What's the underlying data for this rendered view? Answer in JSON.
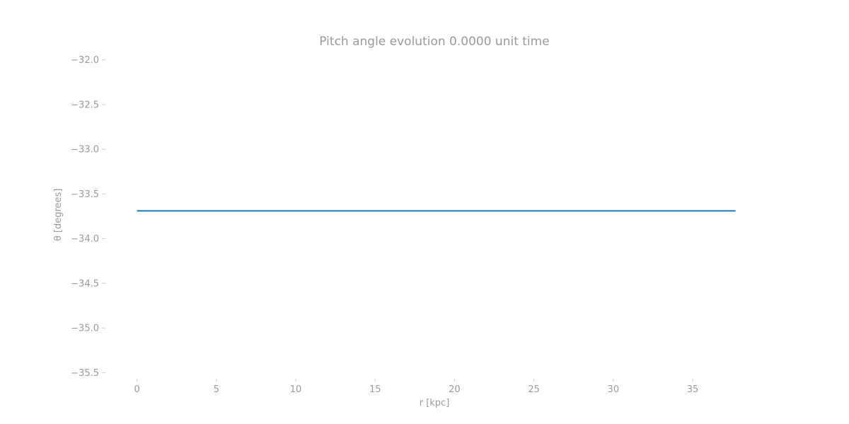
{
  "chart_data": {
    "type": "line",
    "title": "Pitch angle evolution 0.0000 unit time",
    "xlabel": "r [kpc]",
    "ylabel": "θ [degrees]",
    "xlim": [
      -1.5,
      39.5
    ],
    "ylim": [
      -35.6,
      -31.9
    ],
    "xticks": [
      0,
      5,
      10,
      15,
      20,
      25,
      30,
      35
    ],
    "xtick_labels": [
      "0",
      "5",
      "10",
      "15",
      "20",
      "25",
      "30",
      "35"
    ],
    "yticks": [
      -32.0,
      -32.5,
      -33.0,
      -33.5,
      -34.0,
      -34.5,
      -35.0,
      -35.5
    ],
    "ytick_labels": [
      "−32.0",
      "−32.5",
      "−33.0",
      "−33.5",
      "−34.0",
      "−34.5",
      "−35.0",
      "−35.5"
    ],
    "grid": false,
    "legend": "none",
    "series": [
      {
        "x": [
          0,
          37.7
        ],
        "y": [
          -33.69,
          -33.69
        ],
        "color": "#1f77b4"
      }
    ]
  }
}
